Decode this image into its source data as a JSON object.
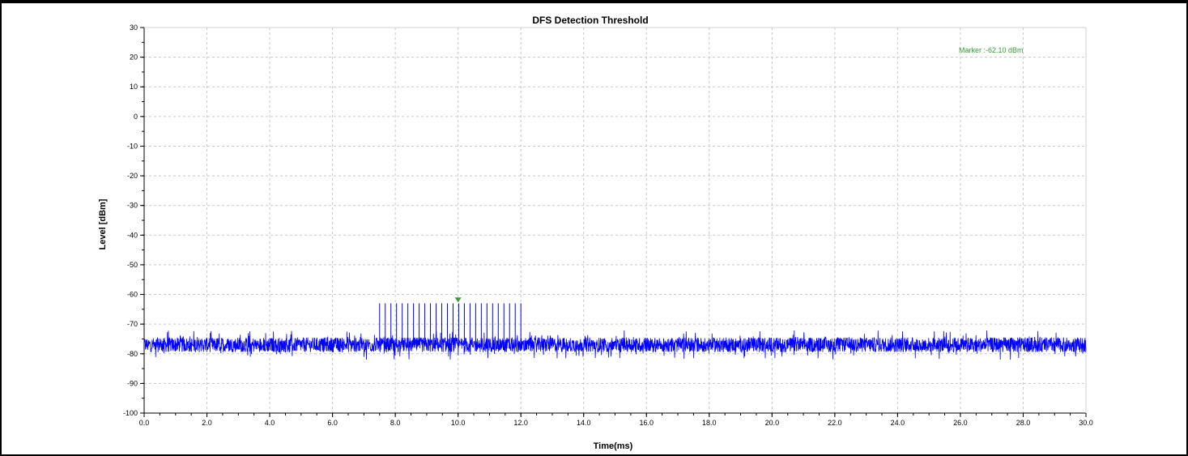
{
  "chart_data": {
    "type": "line",
    "title": "DFS Detection Threshold",
    "xlabel": "Time(ms)",
    "ylabel": "Level [dBm]",
    "xlim": [
      0,
      30
    ],
    "ylim": [
      -100,
      30
    ],
    "x_ticks": [
      "0.0",
      "2.0",
      "4.0",
      "6.0",
      "8.0",
      "10.0",
      "12.0",
      "14.0",
      "16.0",
      "18.0",
      "20.0",
      "22.0",
      "24.0",
      "26.0",
      "28.0",
      "30.0"
    ],
    "y_ticks": [
      "30",
      "20",
      "10",
      "0",
      "-10",
      "-20",
      "-30",
      "-40",
      "-50",
      "-60",
      "-70",
      "-80",
      "-90",
      "-100"
    ],
    "grid": true,
    "series": [
      {
        "color": "#0000ff",
        "noise_floor_dbm": -77,
        "noise_range_dbm": [
          -82,
          -72
        ],
        "pulse_peak_dbm": -63,
        "pulse_burst_ms": [
          7.5,
          12.0
        ],
        "pulse_count": 26
      }
    ],
    "marker": {
      "x_ms": 10.0,
      "value_dbm": -62.1,
      "label": "Marker :-62.10 dBm",
      "color": "#3a9a3a"
    }
  }
}
